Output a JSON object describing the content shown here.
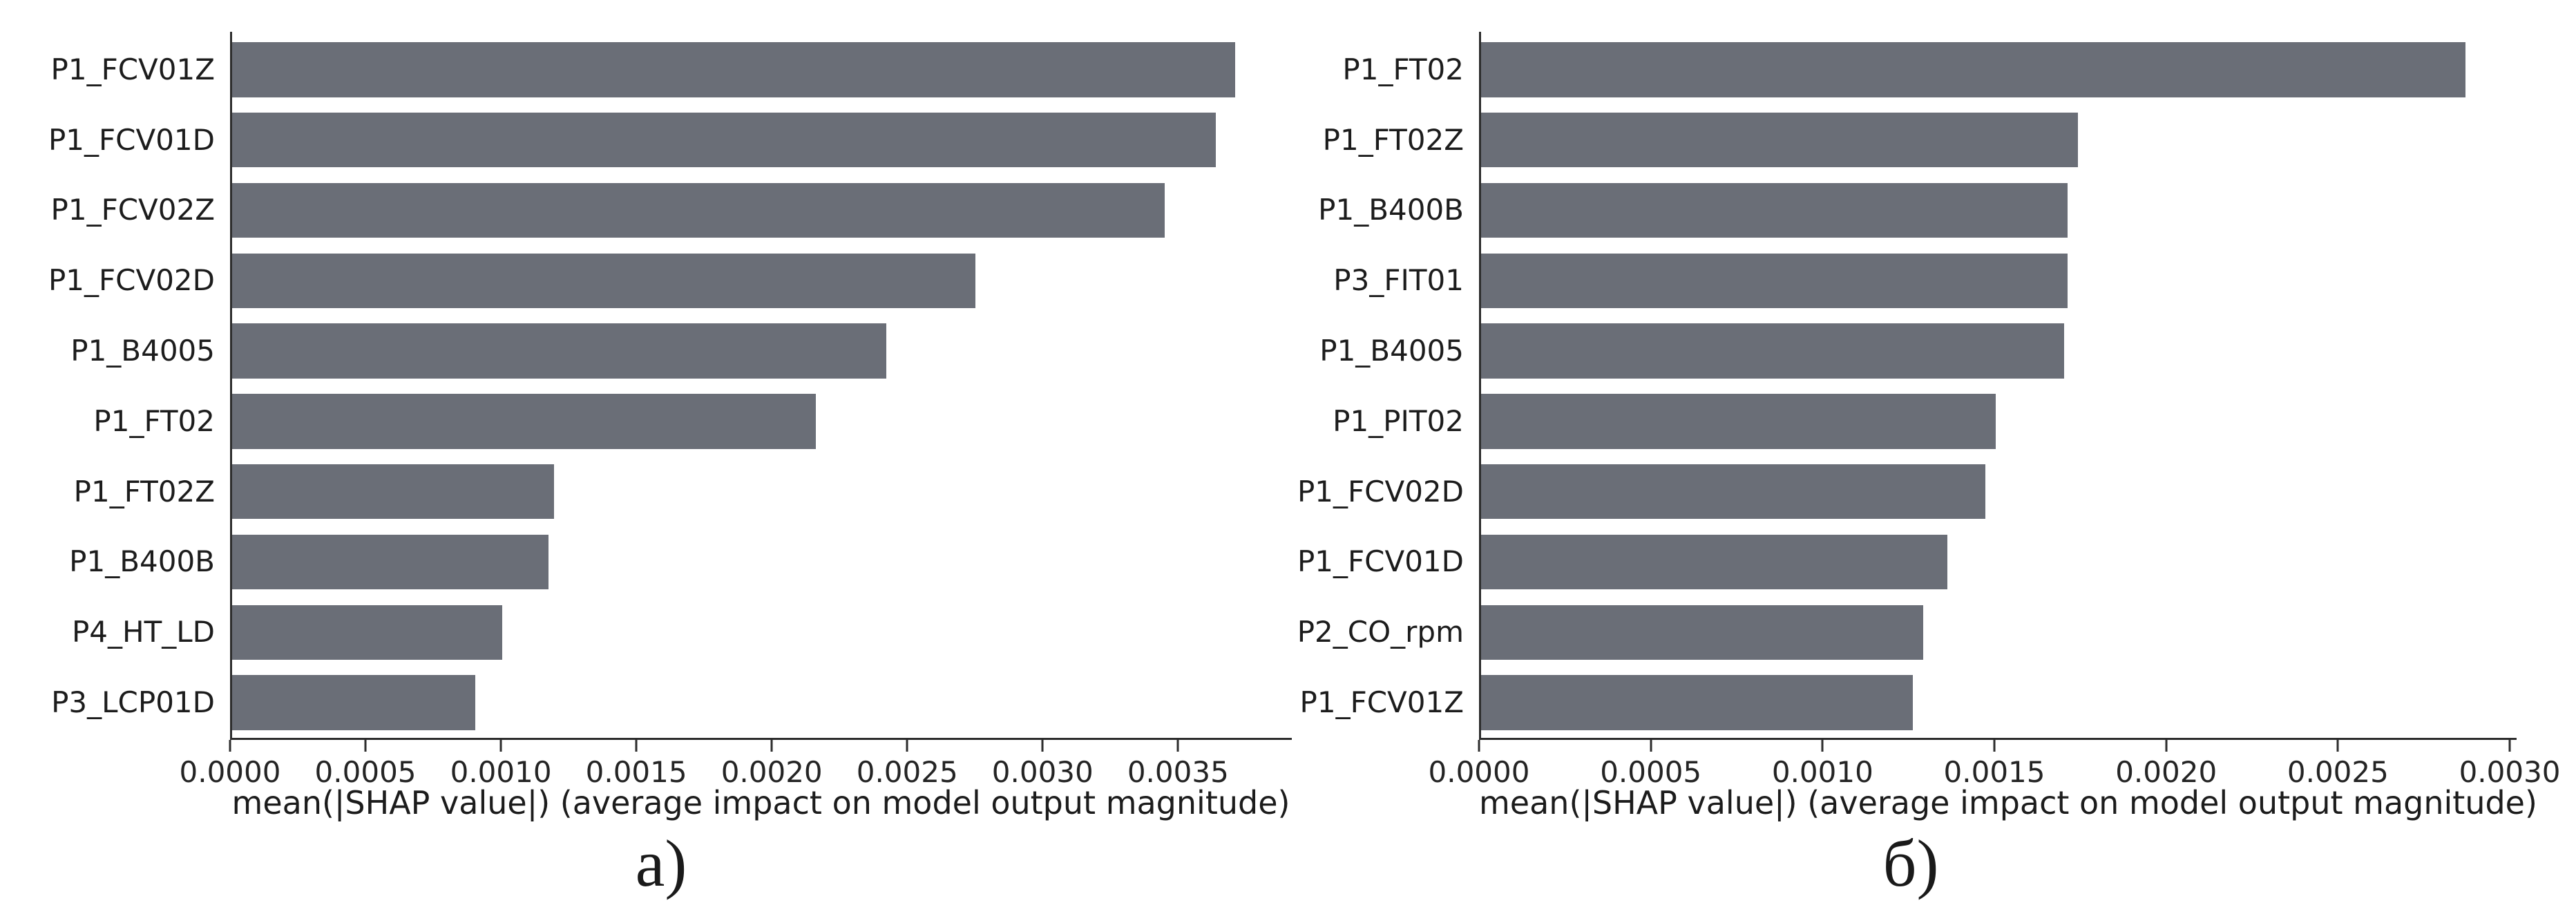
{
  "figure": {
    "background": "#ffffff",
    "bar_color": "#6a6e77",
    "axis_color": "#2d2d2d",
    "text_color": "#1c1c1c"
  },
  "captions": {
    "left": "а)",
    "right": "б)"
  },
  "chart_data": [
    {
      "id": "a",
      "type": "bar",
      "orientation": "horizontal",
      "caption": "а)",
      "xlabel": "mean(|SHAP value|) (average impact on model output magnitude)",
      "ylabel": "",
      "categories": [
        "P1_FCV01Z",
        "P1_FCV01D",
        "P1_FCV02Z",
        "P1_FCV02D",
        "P1_B4005",
        "P1_FT02",
        "P1_FT02Z",
        "P1_B400B",
        "P4_HT_LD",
        "P3_LCP01D"
      ],
      "values": [
        0.00371,
        0.00364,
        0.00345,
        0.00275,
        0.00242,
        0.00216,
        0.00119,
        0.00117,
        0.001,
        0.0009
      ],
      "xlim": [
        0,
        0.00392
      ],
      "xticks": [
        0,
        0.0005,
        0.001,
        0.0015,
        0.002,
        0.0025,
        0.003,
        0.0035
      ],
      "xtick_labels": [
        "0.0000",
        "0.0005",
        "0.0010",
        "0.0015",
        "0.0020",
        "0.0025",
        "0.0030",
        "0.0035"
      ],
      "grid": false,
      "legend": null,
      "bar_color": "#6a6e77"
    },
    {
      "id": "b",
      "type": "bar",
      "orientation": "horizontal",
      "caption": "б)",
      "xlabel": "mean(|SHAP value|) (average impact on model output magnitude)",
      "ylabel": "",
      "categories": [
        "P1_FT02",
        "P1_FT02Z",
        "P1_B400B",
        "P3_FIT01",
        "P1_B4005",
        "P1_PIT02",
        "P1_FCV02D",
        "P1_FCV01D",
        "P2_CO_rpm",
        "P1_FCV01Z"
      ],
      "values": [
        0.00287,
        0.00174,
        0.00171,
        0.00171,
        0.0017,
        0.0015,
        0.00147,
        0.00136,
        0.00129,
        0.00126
      ],
      "xlim": [
        0,
        0.00302
      ],
      "xticks": [
        0,
        0.0005,
        0.001,
        0.0015,
        0.002,
        0.0025,
        0.003
      ],
      "xtick_labels": [
        "0.0000",
        "0.0005",
        "0.0010",
        "0.0015",
        "0.0020",
        "0.0025",
        "0.0030"
      ],
      "grid": false,
      "legend": null,
      "bar_color": "#6a6e77"
    }
  ]
}
